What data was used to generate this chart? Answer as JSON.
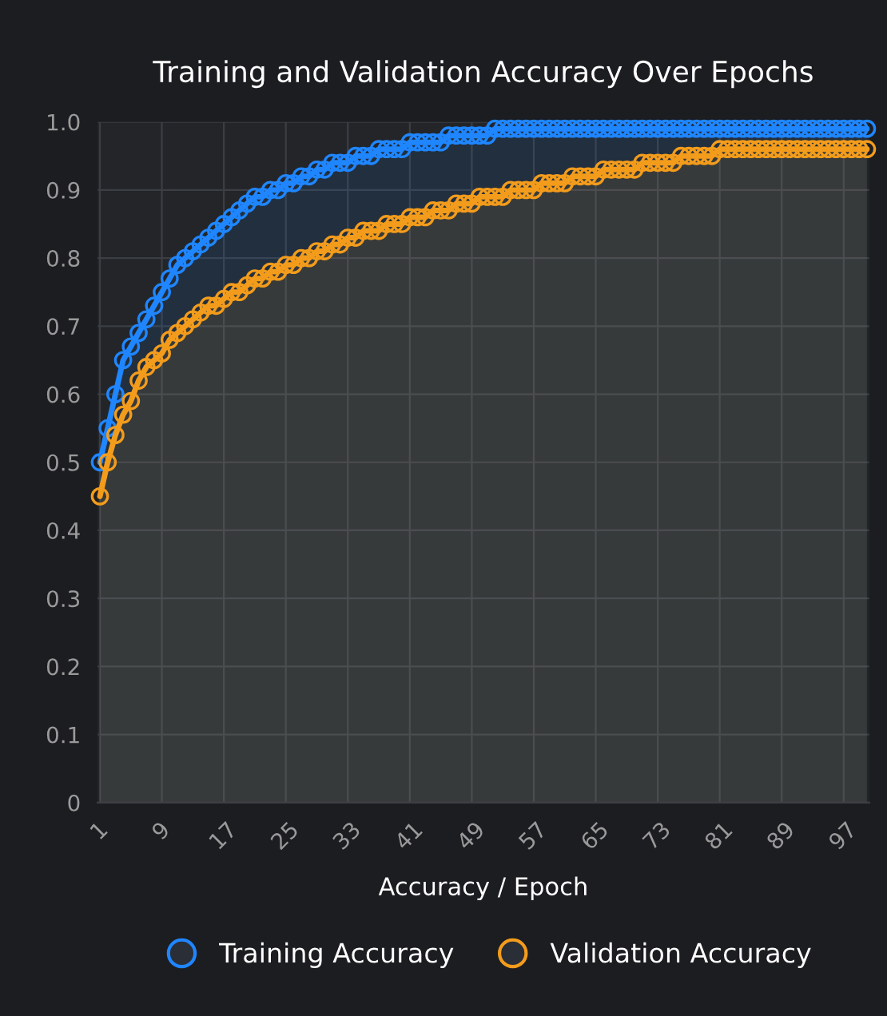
{
  "chart_data": {
    "type": "area",
    "title": "Training and Validation Accuracy Over Epochs",
    "xlabel": "Accuracy / Epoch",
    "categories": [
      "1",
      null,
      null,
      null,
      null,
      null,
      null,
      null,
      "9",
      null,
      null,
      null,
      null,
      null,
      null,
      null,
      "17",
      null,
      null,
      null,
      null,
      null,
      null,
      null,
      "25",
      null,
      null,
      null,
      null,
      null,
      null,
      null,
      "33",
      null,
      null,
      null,
      null,
      null,
      null,
      null,
      "41",
      null,
      null,
      null,
      null,
      null,
      null,
      null,
      "49",
      null,
      null,
      null,
      null,
      null,
      null,
      null,
      "57",
      null,
      null,
      null,
      null,
      null,
      null,
      null,
      "65",
      null,
      null,
      null,
      null,
      null,
      null,
      null,
      "73",
      null,
      null,
      null,
      null,
      null,
      null,
      null,
      "81",
      null,
      null,
      null,
      null,
      null,
      null,
      null,
      "89",
      null,
      null,
      null,
      null,
      null,
      null,
      null,
      "97",
      null,
      null,
      null
    ],
    "series": [
      {
        "name": "Training Accuracy",
        "color": "#1f86ff",
        "values": [
          0.5,
          0.55,
          0.6,
          0.65,
          0.67,
          0.69,
          0.71,
          0.73,
          0.75,
          0.77,
          0.79,
          0.8,
          0.81,
          0.82,
          0.83,
          0.84,
          0.85,
          0.86,
          0.87,
          0.88,
          0.89,
          0.89,
          0.9,
          0.9,
          0.91,
          0.91,
          0.92,
          0.92,
          0.93,
          0.93,
          0.94,
          0.94,
          0.94,
          0.95,
          0.95,
          0.95,
          0.96,
          0.96,
          0.96,
          0.96,
          0.97,
          0.97,
          0.97,
          0.97,
          0.97,
          0.98,
          0.98,
          0.98,
          0.98,
          0.98,
          0.98,
          0.99,
          0.99,
          0.99,
          0.99,
          0.99,
          0.99,
          0.99,
          0.99,
          0.99,
          0.99,
          0.99,
          0.99,
          0.99,
          0.99,
          0.99,
          0.99,
          0.99,
          0.99,
          0.99,
          0.99,
          0.99,
          0.99,
          0.99,
          0.99,
          0.99,
          0.99,
          0.99,
          0.99,
          0.99,
          0.99,
          0.99,
          0.99,
          0.99,
          0.99,
          0.99,
          0.99,
          0.99,
          0.99,
          0.99,
          0.99,
          0.99,
          0.99,
          0.99,
          0.99,
          0.99,
          0.99,
          0.99,
          0.99,
          0.99
        ]
      },
      {
        "name": "Validation Accuracy",
        "color": "#f39c1c",
        "values": [
          0.45,
          0.5,
          0.54,
          0.57,
          0.59,
          0.62,
          0.64,
          0.65,
          0.66,
          0.68,
          0.69,
          0.7,
          0.71,
          0.72,
          0.73,
          0.73,
          0.74,
          0.75,
          0.75,
          0.76,
          0.77,
          0.77,
          0.78,
          0.78,
          0.79,
          0.79,
          0.8,
          0.8,
          0.81,
          0.81,
          0.82,
          0.82,
          0.83,
          0.83,
          0.84,
          0.84,
          0.84,
          0.85,
          0.85,
          0.85,
          0.86,
          0.86,
          0.86,
          0.87,
          0.87,
          0.87,
          0.88,
          0.88,
          0.88,
          0.89,
          0.89,
          0.89,
          0.89,
          0.9,
          0.9,
          0.9,
          0.9,
          0.91,
          0.91,
          0.91,
          0.91,
          0.92,
          0.92,
          0.92,
          0.92,
          0.93,
          0.93,
          0.93,
          0.93,
          0.93,
          0.94,
          0.94,
          0.94,
          0.94,
          0.94,
          0.95,
          0.95,
          0.95,
          0.95,
          0.95,
          0.96,
          0.96,
          0.96,
          0.96,
          0.96,
          0.96,
          0.96,
          0.96,
          0.96,
          0.96,
          0.96,
          0.96,
          0.96,
          0.96,
          0.96,
          0.96,
          0.96,
          0.96,
          0.96,
          0.96
        ]
      }
    ],
    "ylim": [
      0,
      1
    ],
    "yticks": [
      0,
      0.1,
      0.2,
      0.3,
      0.4,
      0.5,
      0.6,
      0.7,
      0.8,
      0.9,
      {
        "value": 1,
        "label": "1.0"
      }
    ],
    "grid": true,
    "legend": "bottom",
    "marker": "circle",
    "line_style": "solid"
  }
}
